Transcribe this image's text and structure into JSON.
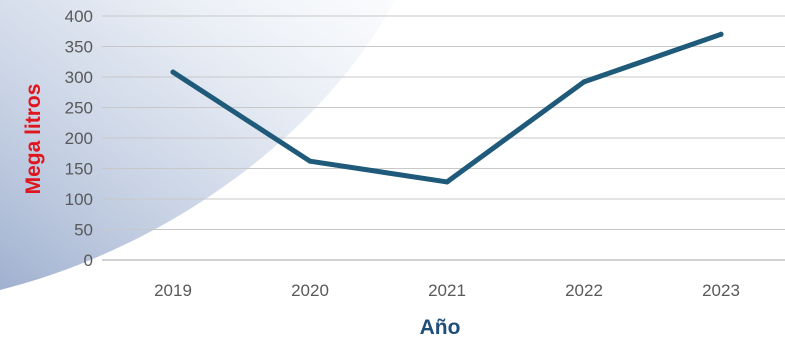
{
  "chart_data": {
    "type": "line",
    "title": "",
    "xlabel": "Año",
    "ylabel": "Mega litros",
    "categories": [
      "2019",
      "2020",
      "2021",
      "2022",
      "2023"
    ],
    "series": [
      {
        "values": [
          308,
          162,
          128,
          292,
          370
        ],
        "color": "#1f5a7a"
      }
    ],
    "ylim": [
      0,
      400
    ],
    "yticks": [
      0,
      50,
      100,
      150,
      200,
      250,
      300,
      350,
      400
    ],
    "grid": true,
    "legend": "none"
  }
}
